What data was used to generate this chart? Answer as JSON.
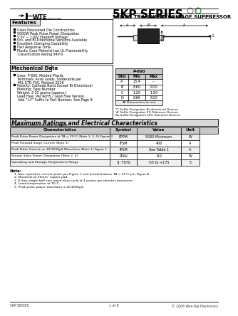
{
  "title_series": "5KP SERIES",
  "subtitle": "5000W TRANSIENT VOLTAGE SUPPRESSOR",
  "bg_color": "#ffffff",
  "features_title": "Features",
  "features": [
    "Glass Passivated Die Construction",
    "5000W Peak Pulse Power Dissipation",
    "5.0V ~ 110V Standoff Voltage",
    "Uni- and Bi-Directional Versions Available",
    "Excellent Clamping Capability",
    "Fast Response Time",
    "Plastic Case Material has UL Flammability",
    "    Classification Rating 94V-0"
  ],
  "mech_title": "Mechanical Data",
  "mech_items": [
    "Case: P-600, Molded Plastic",
    "Terminals: Axial Leads, Solderable per",
    "    MIL-STD-750, Method 2026",
    "Polarity: Cathode Band Except Bi-Directional",
    "Marking: Type Number",
    "Weight: 2.10 grams (approx.)",
    "Lead Free: Per RoHS / Lead Free Version,",
    "    Add \"-LF\" Suffix to Part Number; See Page 8."
  ],
  "table_headers": [
    "Dim",
    "Min",
    "Max"
  ],
  "table_rows": [
    [
      "A",
      "25.4",
      "--"
    ],
    [
      "B",
      "8.60",
      "9.10"
    ],
    [
      "C",
      "1.20",
      "1.50"
    ],
    [
      "D",
      "8.60",
      "9.10"
    ]
  ],
  "table_note": "All Dimensions in mm",
  "package_label": "P-600",
  "suffix_notes": [
    "'C' Suffix Designates Bi-directional Devices",
    "'A' Suffix Designates 5% Tolerance Devices",
    "No Suffix Designates 10% Tolerance Devices"
  ],
  "max_ratings_title": "Maximum Ratings and Electrical Characteristics",
  "max_ratings_note": "@TA=25°C unless otherwise specified.",
  "char_headers": [
    "Characteristics",
    "Symbol",
    "Value",
    "Unit"
  ],
  "char_rows": [
    [
      "Peak Pulse Power Dissipation at TA = 25°C (Note 1, 2, 5) Figure 3",
      "PPPM",
      "5000 Minimum",
      "W"
    ],
    [
      "Peak Forward Surge Current (Note 3)",
      "IFSM",
      "400",
      "A"
    ],
    [
      "Peak Pulse Current on 10/1000μS Waveform (Note 1) Figure 1",
      "IPSM",
      "See Table 1",
      "A"
    ],
    [
      "Steady State Power Dissipation (Note 2, 4)",
      "PPAV",
      "8.0",
      "W"
    ],
    [
      "Operating and Storage Temperature Range",
      "TJ, TSTG",
      "-55 to +175",
      "°C"
    ]
  ],
  "notes_title": "Note:",
  "notes": [
    "1. Non-repetitive current pulse per Figure 1 and derated above TA = 25°C per Figure 8.",
    "2. Mounted on 20mm² copper pad.",
    "3. 8.3ms single half sine-wave duty cycle ≤ 4 pulses per minutes maximum.",
    "4. Lead temperature at 75°C.",
    "5. Peak pulse power waveform is 10/1000μS."
  ],
  "footer_left": "5KP SERIES",
  "footer_center": "1 of 8",
  "footer_right": "© 2006 Won-Top Electronics"
}
